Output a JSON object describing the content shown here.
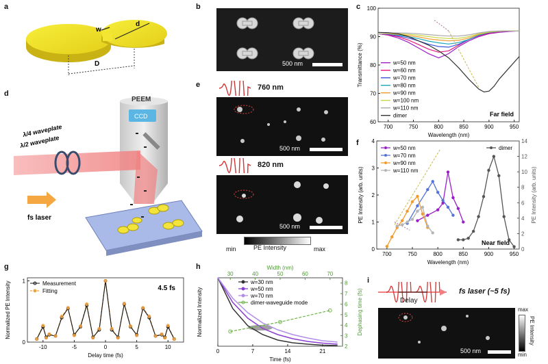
{
  "panels": {
    "a": "a",
    "b": "b",
    "c": "c",
    "d": "d",
    "e": "e",
    "f": "f",
    "g": "g",
    "h": "h",
    "i": "i"
  },
  "panel_a": {
    "w": "w",
    "d": "d",
    "D": "D"
  },
  "panel_b": {
    "scale": "500 nm"
  },
  "panel_d": {
    "peem": "PEEM",
    "ccd": "CCD",
    "qwp": "λ/4 waveplate",
    "hwp": "λ/2 waveplate",
    "laser": "fs laser"
  },
  "panel_e": {
    "wl1": "760 nm",
    "wl2": "820 nm",
    "scale": "500 nm",
    "cbar_title": "PE Intensity",
    "cbar_min": "min",
    "cbar_max": "max"
  },
  "panel_i": {
    "delay": "Delay",
    "laser": "fs laser (~5 fs)",
    "scale": "500 nm",
    "cbar_max": "max",
    "cbar_min": "min",
    "cbar_title": "PE Intensity"
  },
  "chart_data": [
    {
      "id": "c",
      "type": "line",
      "xlabel": "Wavelength (nm)",
      "ylabel": "Transmittance (%)",
      "xlim": [
        680,
        960
      ],
      "ylim": [
        60,
        100
      ],
      "xticks": [
        700,
        750,
        800,
        850,
        900,
        950
      ],
      "yticks": [
        60,
        70,
        80,
        90,
        100
      ],
      "annotation": "Far field",
      "legend": "lower-left",
      "series": [
        {
          "name": "w=50 nm",
          "color": "#9b1fc9",
          "x": [
            680,
            700,
            720,
            740,
            760,
            780,
            800,
            820,
            840,
            860,
            880,
            900,
            920,
            940,
            960
          ],
          "y": [
            91,
            90.5,
            89.5,
            88,
            86,
            84,
            82.5,
            84,
            86.5,
            88.5,
            90,
            91,
            91.5,
            91.8,
            92
          ]
        },
        {
          "name": "w=60 nm",
          "color": "#e8157d",
          "x": [
            680,
            700,
            720,
            740,
            760,
            780,
            800,
            820,
            840,
            860,
            880,
            900,
            920,
            940,
            960
          ],
          "y": [
            91,
            90.6,
            90,
            88.8,
            87.2,
            85.6,
            84.5,
            85,
            87,
            89,
            90.3,
            91.2,
            91.7,
            92,
            92
          ]
        },
        {
          "name": "w=70 nm",
          "color": "#3b55d9",
          "x": [
            680,
            700,
            720,
            740,
            760,
            780,
            800,
            820,
            840,
            860,
            880,
            900,
            920,
            940,
            960
          ],
          "y": [
            91,
            90.8,
            90.3,
            89.5,
            88.5,
            87.3,
            86.5,
            86.3,
            87.3,
            89,
            90.5,
            91.4,
            91.8,
            92,
            92
          ]
        },
        {
          "name": "w=80 nm",
          "color": "#1aa8b8",
          "x": [
            680,
            700,
            720,
            740,
            760,
            780,
            800,
            820,
            840,
            860,
            880,
            900,
            920,
            940,
            960
          ],
          "y": [
            91,
            91,
            90.6,
            90,
            89.3,
            88.4,
            87.8,
            87.4,
            87.9,
            89,
            90.5,
            91.5,
            91.9,
            92,
            92
          ]
        },
        {
          "name": "w=90 nm",
          "color": "#f39a2c",
          "x": [
            680,
            700,
            720,
            740,
            760,
            780,
            800,
            820,
            840,
            860,
            880,
            900,
            920,
            940,
            960
          ],
          "y": [
            91,
            91,
            90.8,
            90.4,
            89.9,
            89.2,
            88.8,
            88.5,
            88.7,
            89.5,
            90.8,
            91.6,
            91.9,
            92,
            92
          ]
        },
        {
          "name": "w=100 nm",
          "color": "#c9d64a",
          "x": [
            680,
            700,
            720,
            740,
            760,
            780,
            800,
            820,
            840,
            860,
            880,
            900,
            920,
            940,
            960
          ],
          "y": [
            91,
            91.1,
            91,
            90.8,
            90.5,
            90,
            89.6,
            89.3,
            89.4,
            90,
            91,
            91.6,
            91.9,
            92,
            92
          ]
        },
        {
          "name": "w=110 nm",
          "color": "#a9a9a9",
          "x": [
            680,
            700,
            720,
            740,
            760,
            780,
            800,
            820,
            840,
            860,
            880,
            900,
            920,
            940,
            960
          ],
          "y": [
            91,
            91.2,
            91.3,
            91.2,
            91,
            90.7,
            90.4,
            90.2,
            90.2,
            90.6,
            91.3,
            91.8,
            92,
            92,
            92
          ]
        },
        {
          "name": "dimer",
          "color": "#333333",
          "x": [
            680,
            700,
            720,
            740,
            760,
            780,
            800,
            820,
            840,
            860,
            880,
            890,
            900,
            910,
            920,
            940,
            960
          ],
          "y": [
            91.5,
            91.4,
            91,
            90,
            88.5,
            87,
            85,
            82.5,
            79,
            75,
            71.5,
            70.5,
            70.8,
            72.5,
            75,
            79,
            83
          ]
        }
      ]
    },
    {
      "id": "f",
      "type": "line",
      "xlabel": "Wavelength (nm)",
      "ylabel": "PE Intensity (arb. units)",
      "y2label": "PE Intensity (arb. units)",
      "xlim": [
        680,
        960
      ],
      "ylim": [
        0,
        4
      ],
      "y2lim": [
        0,
        14
      ],
      "xticks": [
        700,
        750,
        800,
        850,
        900,
        950
      ],
      "yticks": [
        0,
        1,
        2,
        3,
        4
      ],
      "y2ticks": [
        0,
        2,
        4,
        6,
        8,
        10,
        12,
        14
      ],
      "annotation": "Near field",
      "series": [
        {
          "name": "w=50 nm",
          "color": "#9b1fc9",
          "axis": "left",
          "x": [
            760,
            780,
            800,
            810,
            820,
            830,
            840,
            850
          ],
          "y": [
            1.05,
            1.25,
            1.45,
            1.7,
            2.85,
            1.9,
            1.5,
            1.0
          ]
        },
        {
          "name": "w=70 nm",
          "color": "#5472d8",
          "axis": "left",
          "x": [
            740,
            760,
            780,
            790,
            800,
            810,
            820,
            830
          ],
          "y": [
            0.95,
            1.6,
            2.2,
            2.5,
            2.1,
            1.8,
            1.55,
            1.25
          ]
        },
        {
          "name": "w=90 nm",
          "color": "#f39a2c",
          "axis": "left",
          "x": [
            700,
            710,
            720,
            730,
            740,
            750,
            760,
            770,
            780
          ],
          "y": [
            0.1,
            0.45,
            0.8,
            1.05,
            1.4,
            1.75,
            1.95,
            1.3,
            0.8
          ]
        },
        {
          "name": "w=110 nm",
          "color": "#b5b5b5",
          "axis": "left",
          "x": [
            720,
            730,
            740,
            750,
            760,
            770,
            780,
            790
          ],
          "y": [
            0.85,
            0.9,
            1.0,
            1.1,
            1.4,
            1.55,
            0.85,
            0.6
          ]
        },
        {
          "name": "dimer",
          "color": "#555555",
          "axis": "right",
          "x": [
            840,
            850,
            860,
            870,
            880,
            890,
            900,
            910,
            920,
            930,
            940,
            950
          ],
          "y": [
            1.2,
            1.2,
            1.4,
            2.3,
            4.2,
            6.8,
            10.2,
            12,
            9.5,
            4.2,
            1.2,
            0.3
          ]
        }
      ]
    },
    {
      "id": "g",
      "type": "line",
      "xlabel": "Delay time (fs)",
      "ylabel": "Normalized PE Intensity",
      "xlim": [
        -12.5,
        12.5
      ],
      "ylim": [
        0,
        1.05
      ],
      "xticks": [
        -10,
        -5,
        0,
        5,
        10
      ],
      "yticks": [
        0,
        1
      ],
      "annotation": "4.5 fs",
      "series": [
        {
          "name": "Measurement",
          "color": "#111111",
          "x": [
            -11,
            -10,
            -9.5,
            -9,
            -8,
            -7,
            -6,
            -5,
            -4,
            -3,
            -2,
            -1,
            0,
            1,
            2,
            3,
            4,
            5,
            6,
            7,
            8,
            9,
            9.5,
            10,
            11
          ],
          "y": [
            0.05,
            0.25,
            0.08,
            0.12,
            0.1,
            0.4,
            0.55,
            0.12,
            0.25,
            0.6,
            0.08,
            0.2,
            1.0,
            0.2,
            0.08,
            0.62,
            0.25,
            0.12,
            0.55,
            0.4,
            0.1,
            0.12,
            0.08,
            0.25,
            0.05
          ]
        },
        {
          "name": "Fitting",
          "color": "#f0a040",
          "x": [
            -11,
            -10,
            -9.5,
            -9,
            -8,
            -7,
            -6,
            -5,
            -4,
            -3,
            -2,
            -1,
            0,
            1,
            2,
            3,
            4,
            5,
            6,
            7,
            8,
            9,
            9.5,
            10,
            11
          ],
          "y": [
            0.05,
            0.27,
            0.07,
            0.13,
            0.1,
            0.42,
            0.56,
            0.11,
            0.26,
            0.62,
            0.07,
            0.22,
            1.0,
            0.22,
            0.07,
            0.63,
            0.26,
            0.11,
            0.56,
            0.42,
            0.1,
            0.13,
            0.07,
            0.27,
            0.05
          ]
        }
      ]
    },
    {
      "id": "h",
      "type": "line",
      "xlabel": "Time (fs)",
      "ylabel": "Normalized Intensity",
      "x2label": "Width (nm)",
      "y2label": "Dephasing time (fs)",
      "xlim": [
        0,
        25
      ],
      "x2lim": [
        25,
        75
      ],
      "ylim": [
        0,
        1
      ],
      "y2lim": [
        2,
        8.5
      ],
      "xticks": [
        0,
        7,
        14,
        21
      ],
      "x2ticks": [
        30,
        40,
        50,
        60,
        70
      ],
      "y2ticks": [
        2,
        3,
        4,
        5,
        6,
        7,
        8
      ],
      "series": [
        {
          "name": "w=30 nm",
          "color": "#333333",
          "axis": "left",
          "x": [
            0,
            3,
            6,
            9,
            12,
            15,
            18,
            21,
            24
          ],
          "y": [
            1.0,
            0.55,
            0.3,
            0.17,
            0.09,
            0.05,
            0.03,
            0.015,
            0.01
          ]
        },
        {
          "name": "w=50 nm",
          "color": "#8a3fd1",
          "axis": "left",
          "x": [
            0,
            3,
            6,
            9,
            12,
            15,
            18,
            21,
            24
          ],
          "y": [
            1.0,
            0.64,
            0.41,
            0.26,
            0.17,
            0.11,
            0.07,
            0.045,
            0.03
          ]
        },
        {
          "name": "w=70 nm",
          "color": "#b18ee8",
          "axis": "left",
          "x": [
            0,
            3,
            6,
            9,
            12,
            15,
            18,
            21,
            24
          ],
          "y": [
            1.0,
            0.7,
            0.49,
            0.34,
            0.24,
            0.17,
            0.12,
            0.08,
            0.06
          ]
        },
        {
          "name": "dimer-waveguide mode",
          "color": "#6fb54a",
          "axis": "right",
          "x2": [
            30,
            50,
            70
          ],
          "y": [
            3.4,
            4.3,
            5.4
          ]
        }
      ]
    }
  ]
}
